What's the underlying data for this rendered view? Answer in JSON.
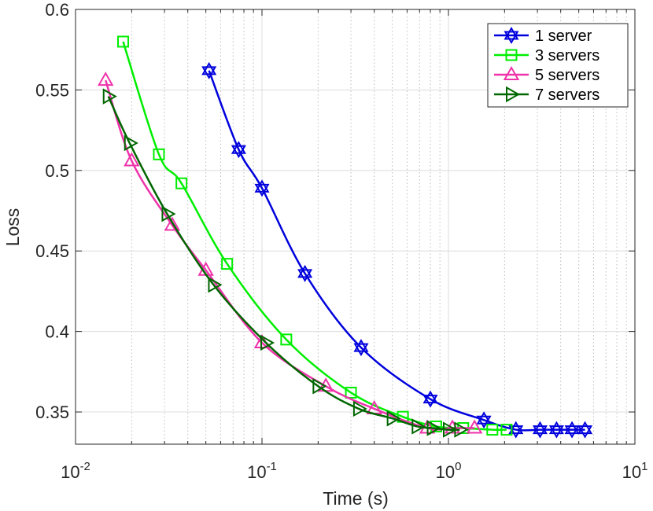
{
  "chart_data": {
    "type": "line",
    "title": "",
    "xlabel": "Time (s)",
    "ylabel": "Loss",
    "xscale": "log",
    "xlim": [
      0.01,
      10
    ],
    "ylim": [
      0.33,
      0.6
    ],
    "grid": true,
    "legend_position": "top-right",
    "x_ticks": [
      {
        "value": 0.01,
        "base": "10",
        "exp": "-2"
      },
      {
        "value": 0.1,
        "base": "10",
        "exp": "-1"
      },
      {
        "value": 1,
        "base": "10",
        "exp": "0"
      },
      {
        "value": 10,
        "base": "10",
        "exp": "1"
      }
    ],
    "y_ticks": [
      {
        "value": 0.35,
        "label": "0.35"
      },
      {
        "value": 0.4,
        "label": "0.4"
      },
      {
        "value": 0.45,
        "label": "0.45"
      },
      {
        "value": 0.5,
        "label": "0.5"
      },
      {
        "value": 0.55,
        "label": "0.55"
      },
      {
        "value": 0.6,
        "label": "0.6"
      }
    ],
    "series": [
      {
        "name": "1 server",
        "color": "#0000dd",
        "marker": "hexagram",
        "x": [
          0.052,
          0.075,
          0.1,
          0.17,
          0.34,
          0.8,
          1.55,
          2.3,
          3.1,
          3.8,
          4.6,
          5.4
        ],
        "y": [
          0.562,
          0.513,
          0.489,
          0.436,
          0.39,
          0.358,
          0.345,
          0.339,
          0.339,
          0.339,
          0.339,
          0.339
        ]
      },
      {
        "name": "3 servers",
        "color": "#00ee00",
        "marker": "square",
        "x": [
          0.018,
          0.028,
          0.037,
          0.065,
          0.135,
          0.3,
          0.57,
          0.86,
          1.2,
          1.72,
          2.05
        ],
        "y": [
          0.58,
          0.51,
          0.492,
          0.442,
          0.395,
          0.362,
          0.347,
          0.341,
          0.34,
          0.339,
          0.339
        ]
      },
      {
        "name": "5 servers",
        "color": "#ee33aa",
        "marker": "triangle-up",
        "x": [
          0.0145,
          0.02,
          0.033,
          0.05,
          0.1,
          0.22,
          0.4,
          0.77,
          1.05,
          1.38
        ],
        "y": [
          0.556,
          0.506,
          0.466,
          0.438,
          0.393,
          0.366,
          0.352,
          0.34,
          0.34,
          0.34
        ]
      },
      {
        "name": "7 servers",
        "color": "#006600",
        "marker": "triangle-right",
        "x": [
          0.015,
          0.0195,
          0.031,
          0.055,
          0.105,
          0.2,
          0.33,
          0.5,
          0.68,
          0.82,
          1.0,
          1.15
        ],
        "y": [
          0.546,
          0.517,
          0.473,
          0.429,
          0.393,
          0.366,
          0.352,
          0.346,
          0.341,
          0.34,
          0.339,
          0.339
        ]
      }
    ]
  }
}
